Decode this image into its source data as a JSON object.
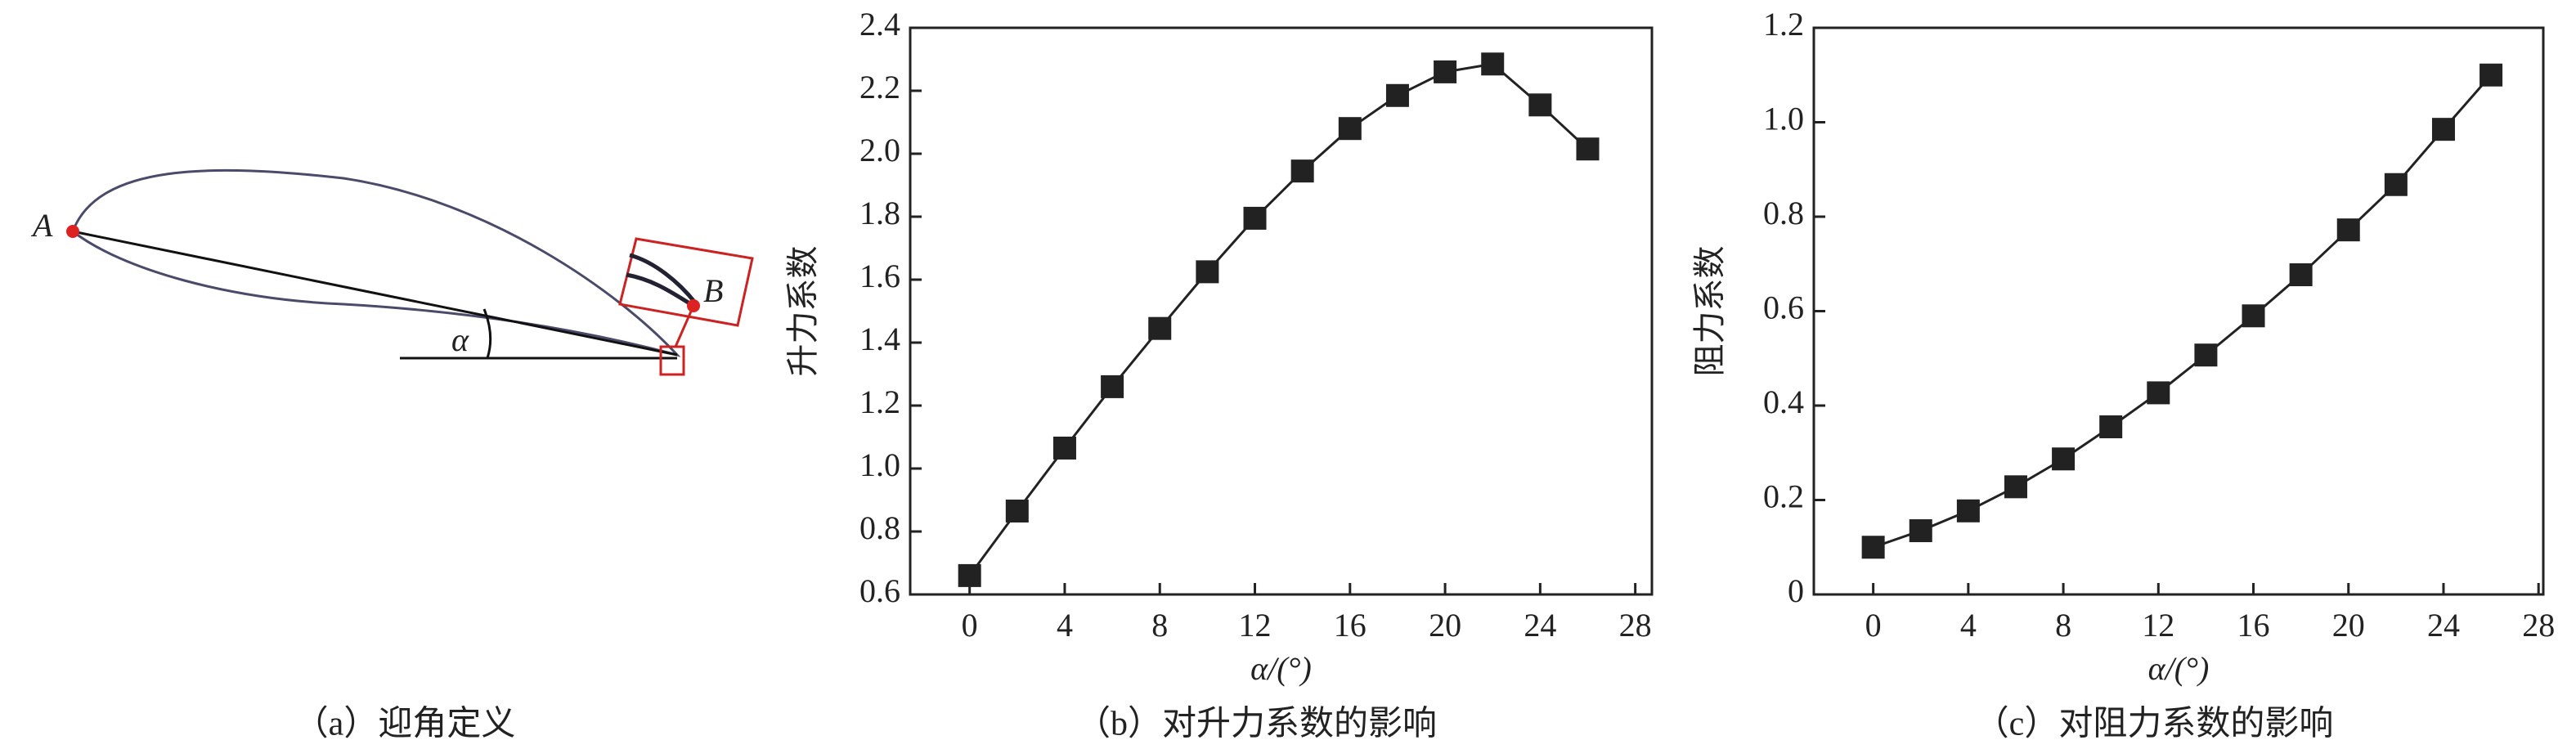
{
  "diagram": {
    "point_a": "A",
    "point_b": "B",
    "angle": "α",
    "caption": "（a）迎角定义"
  },
  "chart_data": [
    {
      "type": "line",
      "caption": "（b）对升力系数的影响",
      "x_label": "α/(°)",
      "y_label": "升力系数",
      "x": [
        0,
        2,
        4,
        6,
        8,
        10,
        12,
        14,
        16,
        18,
        20,
        22,
        24,
        26
      ],
      "series": [
        {
          "color": "#222222",
          "values": [
            0.66,
            0.865,
            1.065,
            1.26,
            1.445,
            1.625,
            1.795,
            1.945,
            2.08,
            2.185,
            2.26,
            2.285,
            2.155,
            2.015
          ]
        }
      ],
      "xlim": [
        -2.5,
        28.7
      ],
      "xticks": [
        0,
        4,
        8,
        12,
        16,
        20,
        24,
        28
      ],
      "ylim": [
        0.6,
        2.4
      ],
      "yticks": [
        0.6,
        0.8,
        {
          "value": 1.0,
          "label": "1.0"
        },
        1.2,
        1.4,
        1.6,
        1.8,
        {
          "value": 2.0,
          "label": "2.0"
        },
        2.2,
        2.4
      ]
    },
    {
      "type": "line",
      "caption": "（c）对阻力系数的影响",
      "x_label": "α/(°)",
      "y_label": "阻力系数",
      "x": [
        0,
        2,
        4,
        6,
        8,
        10,
        12,
        14,
        16,
        18,
        20,
        22,
        24,
        26
      ],
      "series": [
        {
          "color": "#222222",
          "values": [
            0.1,
            0.135,
            0.177,
            0.228,
            0.287,
            0.355,
            0.427,
            0.507,
            0.59,
            0.677,
            0.772,
            0.868,
            0.985,
            1.1
          ]
        }
      ],
      "xlim": [
        -2.5,
        28.2
      ],
      "xticks": [
        0,
        4,
        8,
        12,
        16,
        20,
        24,
        28
      ],
      "ylim": [
        0,
        1.2
      ],
      "yticks": [
        0,
        0.2,
        0.4,
        0.6,
        0.8,
        {
          "value": 1.0,
          "label": "1.0"
        },
        1.2
      ]
    }
  ]
}
